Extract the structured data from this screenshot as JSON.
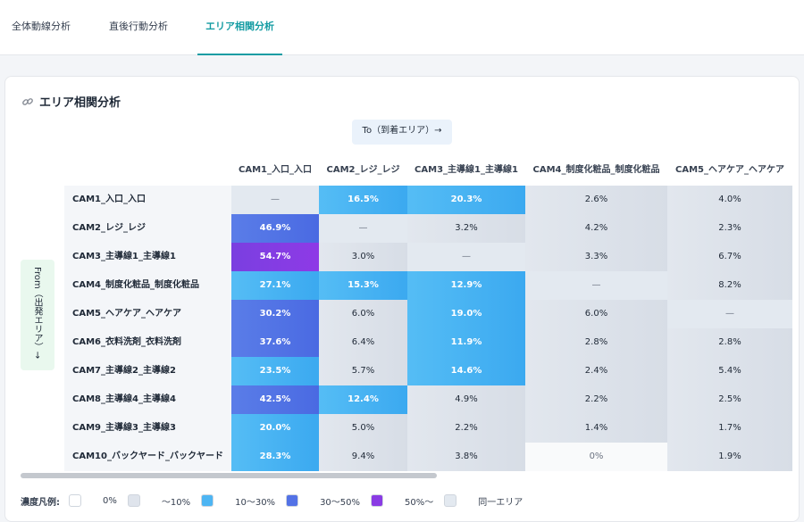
{
  "tabs": [
    {
      "label": "全体動線分析",
      "active": false
    },
    {
      "label": "直後行動分析",
      "active": false
    },
    {
      "label": "エリア相関分析",
      "active": true
    }
  ],
  "card": {
    "title": "エリア相関分析",
    "title_icon": "link-icon",
    "to_label": "To（到着エリア）→",
    "from_label": "From（出発エリア）→"
  },
  "matrix": {
    "columns": [
      "CAM1_入口_入口",
      "CAM2_レジ_レジ",
      "CAM3_主導線1_主導線1",
      "CAM4_制度化粧品_制度化粧品",
      "CAM5_ヘアケア_ヘアケア"
    ],
    "rows": [
      {
        "label": "CAM1_入口_入口",
        "cells": [
          {
            "v": "—",
            "lvl": "same"
          },
          {
            "v": "16.5%",
            "lvl": "lvl2"
          },
          {
            "v": "20.3%",
            "lvl": "lvl2"
          },
          {
            "v": "2.6%",
            "lvl": "lvl1"
          },
          {
            "v": "4.0%",
            "lvl": "lvl1"
          }
        ]
      },
      {
        "label": "CAM2_レジ_レジ",
        "cells": [
          {
            "v": "46.9%",
            "lvl": "lvl3"
          },
          {
            "v": "—",
            "lvl": "same"
          },
          {
            "v": "3.2%",
            "lvl": "lvl1"
          },
          {
            "v": "4.2%",
            "lvl": "lvl1"
          },
          {
            "v": "2.3%",
            "lvl": "lvl1"
          }
        ]
      },
      {
        "label": "CAM3_主導線1_主導線1",
        "cells": [
          {
            "v": "54.7%",
            "lvl": "lvl4"
          },
          {
            "v": "3.0%",
            "lvl": "lvl1"
          },
          {
            "v": "—",
            "lvl": "same"
          },
          {
            "v": "3.3%",
            "lvl": "lvl1"
          },
          {
            "v": "6.7%",
            "lvl": "lvl1"
          }
        ]
      },
      {
        "label": "CAM4_制度化粧品_制度化粧品",
        "cells": [
          {
            "v": "27.1%",
            "lvl": "lvl2"
          },
          {
            "v": "15.3%",
            "lvl": "lvl2"
          },
          {
            "v": "12.9%",
            "lvl": "lvl2"
          },
          {
            "v": "—",
            "lvl": "same"
          },
          {
            "v": "8.2%",
            "lvl": "lvl1"
          }
        ]
      },
      {
        "label": "CAM5_ヘアケア_ヘアケア",
        "cells": [
          {
            "v": "30.2%",
            "lvl": "lvl3"
          },
          {
            "v": "6.0%",
            "lvl": "lvl1"
          },
          {
            "v": "19.0%",
            "lvl": "lvl2"
          },
          {
            "v": "6.0%",
            "lvl": "lvl1"
          },
          {
            "v": "—",
            "lvl": "same"
          }
        ]
      },
      {
        "label": "CAM6_衣料洗剤_衣料洗剤",
        "cells": [
          {
            "v": "37.6%",
            "lvl": "lvl3"
          },
          {
            "v": "6.4%",
            "lvl": "lvl1"
          },
          {
            "v": "11.9%",
            "lvl": "lvl2"
          },
          {
            "v": "2.8%",
            "lvl": "lvl1"
          },
          {
            "v": "2.8%",
            "lvl": "lvl1"
          }
        ]
      },
      {
        "label": "CAM7_主導線2_主導線2",
        "cells": [
          {
            "v": "23.5%",
            "lvl": "lvl2"
          },
          {
            "v": "5.7%",
            "lvl": "lvl1"
          },
          {
            "v": "14.6%",
            "lvl": "lvl2"
          },
          {
            "v": "2.4%",
            "lvl": "lvl1"
          },
          {
            "v": "5.4%",
            "lvl": "lvl1"
          }
        ]
      },
      {
        "label": "CAM8_主導線4_主導線4",
        "cells": [
          {
            "v": "42.5%",
            "lvl": "lvl3"
          },
          {
            "v": "12.4%",
            "lvl": "lvl2"
          },
          {
            "v": "4.9%",
            "lvl": "lvl1"
          },
          {
            "v": "2.2%",
            "lvl": "lvl1"
          },
          {
            "v": "2.5%",
            "lvl": "lvl1"
          }
        ]
      },
      {
        "label": "CAM9_主導線3_主導線3",
        "cells": [
          {
            "v": "20.0%",
            "lvl": "lvl2"
          },
          {
            "v": "5.0%",
            "lvl": "lvl1"
          },
          {
            "v": "2.2%",
            "lvl": "lvl1"
          },
          {
            "v": "1.4%",
            "lvl": "lvl1"
          },
          {
            "v": "1.7%",
            "lvl": "lvl1"
          }
        ]
      },
      {
        "label": "CAM10_バックヤード_バックヤード",
        "cells": [
          {
            "v": "28.3%",
            "lvl": "lvl2"
          },
          {
            "v": "9.4%",
            "lvl": "lvl1"
          },
          {
            "v": "3.8%",
            "lvl": "lvl1"
          },
          {
            "v": "0%",
            "lvl": "lvl0"
          },
          {
            "v": "1.9%",
            "lvl": "lvl1"
          }
        ]
      }
    ]
  },
  "legend": {
    "title": "濃度凡例:",
    "items": [
      {
        "label": "0%",
        "color": "#ffffff"
      },
      {
        "label": "〜10%",
        "color": "#dfe4ec"
      },
      {
        "label": "10〜30%",
        "color": "#4db5f3"
      },
      {
        "label": "30〜50%",
        "color": "#5372e6"
      },
      {
        "label": "50%〜",
        "color": "#8a3be4"
      },
      {
        "label": "同一エリア",
        "color": "#e3e9f0"
      }
    ]
  }
}
